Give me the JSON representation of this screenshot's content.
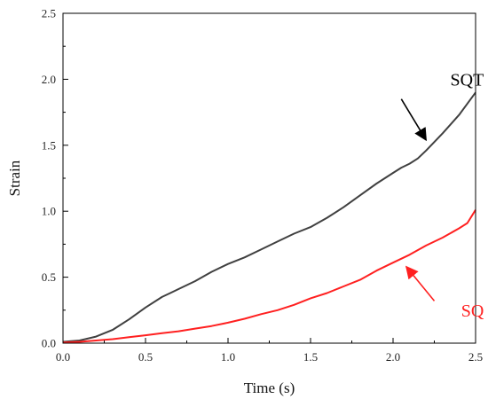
{
  "chart_data": {
    "type": "line",
    "xlabel": "Time (s)",
    "ylabel": "Strain",
    "xlim": [
      0,
      2.5
    ],
    "ylim": [
      0,
      2.5
    ],
    "x_ticks": [
      "0.0",
      "0.5",
      "1.0",
      "1.5",
      "2.0",
      "2.5"
    ],
    "y_ticks": [
      "0.0",
      "0.5",
      "1.0",
      "1.5",
      "2.0",
      "2.5"
    ],
    "grid": false,
    "series": [
      {
        "name": "SQT",
        "color": "#404040",
        "x": [
          0,
          0.1,
          0.2,
          0.3,
          0.4,
          0.5,
          0.6,
          0.65,
          0.7,
          0.8,
          0.9,
          1.0,
          1.1,
          1.2,
          1.3,
          1.4,
          1.5,
          1.6,
          1.7,
          1.8,
          1.9,
          2.0,
          2.05,
          2.1,
          2.15,
          2.2,
          2.3,
          2.4,
          2.5
        ],
        "y": [
          0.01,
          0.02,
          0.05,
          0.1,
          0.18,
          0.27,
          0.35,
          0.38,
          0.41,
          0.47,
          0.54,
          0.6,
          0.65,
          0.71,
          0.77,
          0.83,
          0.88,
          0.95,
          1.03,
          1.12,
          1.21,
          1.29,
          1.33,
          1.36,
          1.4,
          1.46,
          1.59,
          1.73,
          1.9
        ]
      },
      {
        "name": "SQ",
        "color": "#ff2020",
        "x": [
          0,
          0.1,
          0.2,
          0.3,
          0.4,
          0.5,
          0.6,
          0.7,
          0.8,
          0.9,
          1.0,
          1.1,
          1.2,
          1.3,
          1.4,
          1.5,
          1.6,
          1.7,
          1.8,
          1.9,
          2.0,
          2.1,
          2.2,
          2.3,
          2.4,
          2.45,
          2.5
        ],
        "y": [
          0.005,
          0.01,
          0.02,
          0.03,
          0.045,
          0.06,
          0.075,
          0.09,
          0.11,
          0.13,
          0.155,
          0.185,
          0.22,
          0.25,
          0.29,
          0.34,
          0.38,
          0.43,
          0.48,
          0.55,
          0.61,
          0.67,
          0.74,
          0.8,
          0.87,
          0.91,
          1.01
        ]
      }
    ],
    "annotations": [
      {
        "text": "SQT",
        "color": "#000000",
        "text_x": 2.55,
        "text_y": 2.0,
        "arrow_from": [
          2.05,
          1.85
        ],
        "arrow_to": [
          2.2,
          1.54
        ]
      },
      {
        "text": "SQ",
        "color": "#ff2020",
        "text_x": 2.55,
        "text_y": 0.25,
        "arrow_from": [
          2.25,
          0.32
        ],
        "arrow_to": [
          2.08,
          0.58
        ]
      }
    ]
  }
}
